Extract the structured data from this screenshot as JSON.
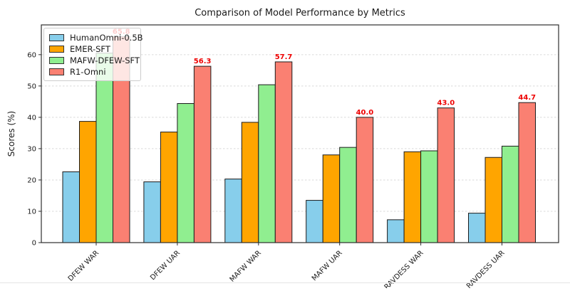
{
  "chart_data": {
    "type": "bar",
    "title": "Comparison of Model Performance by Metrics",
    "xlabel": "",
    "ylabel": "Scores (%)",
    "categories": [
      "DFEW WAR",
      "DFEW UAR",
      "MAFW WAR",
      "MAFW UAR",
      "RAVDESS WAR",
      "RAVDESS UAR"
    ],
    "series": [
      {
        "name": "HumanOmni-0.5B",
        "color": "#87CEEB",
        "values": [
          22.6,
          19.4,
          20.3,
          13.5,
          7.3,
          9.4
        ]
      },
      {
        "name": "EMER-SFT",
        "color": "#FFA500",
        "values": [
          38.7,
          35.3,
          38.4,
          28.0,
          29.0,
          27.2
        ]
      },
      {
        "name": "MAFW-DFEW-SFT",
        "color": "#90EE90",
        "values": [
          60.5,
          44.4,
          50.4,
          30.4,
          29.3,
          30.8
        ]
      },
      {
        "name": "R1-Omni",
        "color": "#FA8072",
        "values": [
          65.8,
          56.3,
          57.7,
          40.0,
          43.0,
          44.7
        ],
        "value_labels": [
          "65.8",
          "56.3",
          "57.7",
          "40.0",
          "43.0",
          "44.7"
        ],
        "value_label_color": "#ee0000"
      }
    ],
    "yticks": [
      0,
      10,
      20,
      30,
      40,
      50,
      60
    ],
    "ylim": [
      0,
      69.5
    ],
    "grid": "horizontal-dashed",
    "gridline_color": "#d9d9d9",
    "bar_edge_color": "#1c1c1c",
    "spine_color": "#2e2e2e",
    "legend_position": "upper-left"
  }
}
